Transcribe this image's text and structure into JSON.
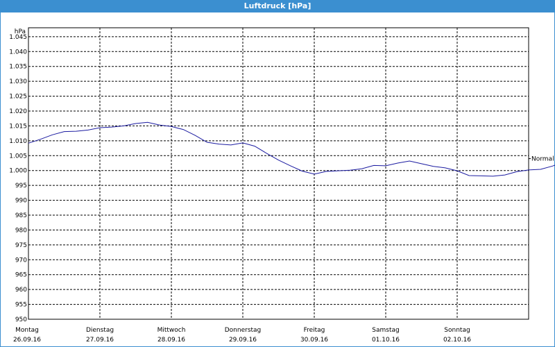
{
  "title": "Luftdruck [hPa]",
  "chart_data": {
    "type": "line",
    "title": "Luftdruck [hPa]",
    "ylabel": "hPa",
    "xlabel": "",
    "ylim": [
      950,
      1048
    ],
    "yticks": [
      "950",
      "955",
      "960",
      "965",
      "970",
      "975",
      "980",
      "985",
      "990",
      "995",
      "1.000",
      "1.005",
      "1.010",
      "1.015",
      "1.020",
      "1.025",
      "1.030",
      "1.035",
      "1.040",
      "1.045"
    ],
    "ytick_values": [
      950,
      955,
      960,
      965,
      970,
      975,
      980,
      985,
      990,
      995,
      1000,
      1005,
      1010,
      1015,
      1020,
      1025,
      1030,
      1035,
      1040,
      1045
    ],
    "xlim": [
      "26.09.16 00:00",
      "02.10.16 23:59"
    ],
    "days": [
      {
        "day": "Montag",
        "date": "26.09.16"
      },
      {
        "day": "Dienstag",
        "date": "27.09.16"
      },
      {
        "day": "Mittwoch",
        "date": "28.09.16"
      },
      {
        "day": "Donnerstag",
        "date": "29.09.16"
      },
      {
        "day": "Freitag",
        "date": "30.09.16"
      },
      {
        "day": "Samstag",
        "date": "01.10.16"
      },
      {
        "day": "Sonntag",
        "date": "02.10.16"
      }
    ],
    "grid": true,
    "series": [
      {
        "name": "Normal",
        "color": "#1a1aa0",
        "points": [
          [
            "26.09.16 00:00",
            1009.2
          ],
          [
            "26.09.16 04:00",
            1010.5
          ],
          [
            "26.09.16 08:00",
            1012.0
          ],
          [
            "26.09.16 12:00",
            1013.1
          ],
          [
            "26.09.16 16:00",
            1013.2
          ],
          [
            "26.09.16 20:00",
            1013.6
          ],
          [
            "27.09.16 00:00",
            1014.4
          ],
          [
            "27.09.16 04:00",
            1014.6
          ],
          [
            "27.09.16 08:00",
            1015.0
          ],
          [
            "27.09.16 12:00",
            1015.8
          ],
          [
            "27.09.16 16:00",
            1016.2
          ],
          [
            "27.09.16 20:00",
            1015.3
          ],
          [
            "28.09.16 00:00",
            1014.8
          ],
          [
            "28.09.16 04:00",
            1013.8
          ],
          [
            "28.09.16 08:00",
            1011.8
          ],
          [
            "28.09.16 12:00",
            1009.5
          ],
          [
            "28.09.16 16:00",
            1008.9
          ],
          [
            "28.09.16 20:00",
            1008.6
          ],
          [
            "29.09.16 00:00",
            1009.3
          ],
          [
            "29.09.16 04:00",
            1008.2
          ],
          [
            "29.09.16 08:00",
            1005.8
          ],
          [
            "29.09.16 12:00",
            1003.5
          ],
          [
            "29.09.16 16:00",
            1001.6
          ],
          [
            "29.09.16 20:00",
            999.8
          ],
          [
            "30.09.16 00:00",
            998.8
          ],
          [
            "30.09.16 04:00",
            999.7
          ],
          [
            "30.09.16 08:00",
            999.9
          ],
          [
            "30.09.16 12:00",
            1000.1
          ],
          [
            "30.09.16 16:00",
            1000.6
          ],
          [
            "30.09.16 20:00",
            1001.7
          ],
          [
            "01.10.16 00:00",
            1001.6
          ],
          [
            "01.10.16 04:00",
            1002.5
          ],
          [
            "01.10.16 08:00",
            1003.2
          ],
          [
            "01.10.16 12:00",
            1002.3
          ],
          [
            "01.10.16 16:00",
            1001.4
          ],
          [
            "01.10.16 20:00",
            1000.9
          ],
          [
            "02.10.16 00:00",
            999.9
          ],
          [
            "02.10.16 04:00",
            998.3
          ],
          [
            "02.10.16 08:00",
            998.2
          ],
          [
            "02.10.16 12:00",
            998.1
          ],
          [
            "02.10.16 16:00",
            998.5
          ],
          [
            "02.10.16 20:00",
            999.6
          ],
          [
            "03.10.16 00:00",
            1000.2
          ],
          [
            "03.10.16 04:00",
            1000.4
          ],
          [
            "03.10.16 08:00",
            1001.5
          ],
          [
            "03.10.16 12:00",
            1003.0
          ],
          [
            "03.10.16 14:00",
            1004.0
          ]
        ]
      }
    ]
  }
}
